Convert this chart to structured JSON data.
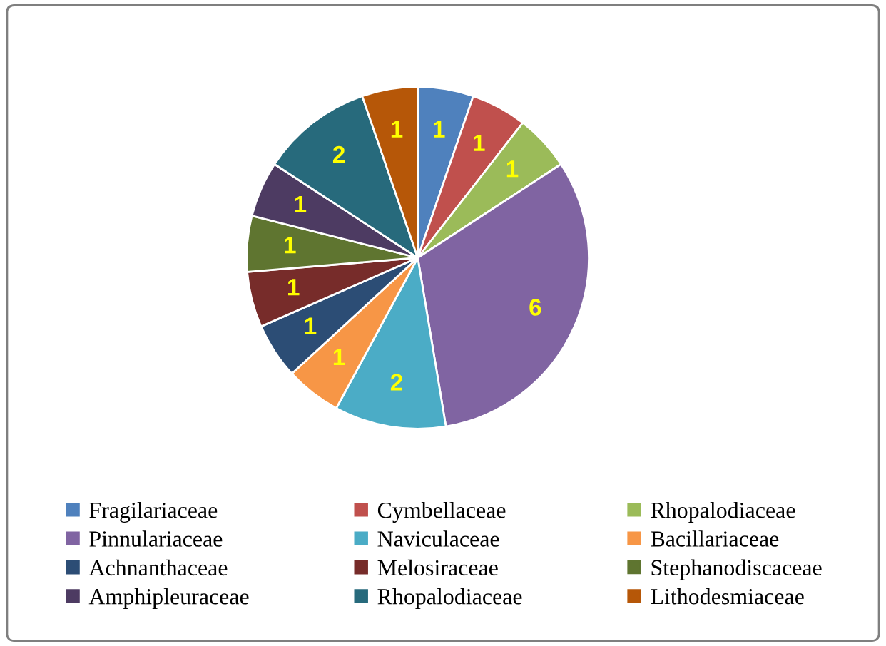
{
  "chart_data": {
    "type": "pie",
    "categories": [
      "Fragilariaceae",
      "Cymbellaceae",
      "Rhopalodiaceae",
      "Pinnulariaceae",
      "Naviculaceae",
      "Bacillariaceae",
      "Achnanthaceae",
      "Melosiraceae",
      "Stephanodiscaceae",
      "Amphipleuraceae",
      "Rhopalodiaceae",
      "Lithodesmiaceae"
    ],
    "values": [
      1,
      1,
      1,
      6,
      2,
      1,
      1,
      1,
      1,
      1,
      2,
      1
    ],
    "colors": [
      "#4f81bd",
      "#c0504d",
      "#9bbb59",
      "#8064a2",
      "#4bacc6",
      "#f79646",
      "#2c4d75",
      "#772c2a",
      "#5f7530",
      "#4d3b62",
      "#276a7c",
      "#b65708"
    ],
    "data_labels": true,
    "legend": "bottom"
  }
}
